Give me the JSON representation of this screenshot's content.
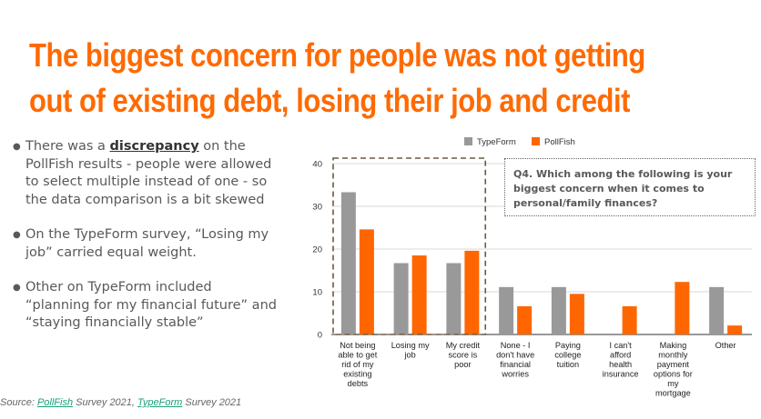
{
  "title": "The biggest concern for people was not getting out of existing debt, losing their job and credit",
  "bullets": {
    "b1_pre": "There was a ",
    "b1_bold": "discrepancy",
    "b1_post": " on the PollFish results - people were allowed to select multiple instead of one - so the data comparison is a bit skewed",
    "b2": "On the TypeForm survey, “Losing my job” carried equal weight.",
    "b3": "Other on TypeForm included “planning for my financial future” and “staying financially stable”"
  },
  "source": {
    "prefix": "Source: ",
    "pollfish_link": "PollFish",
    "mid": " Survey 2021,  ",
    "typeform_link": "TypeForm",
    "suffix": " Survey 2021"
  },
  "question_box": "Q4. Which among the following is your biggest concern when it comes to personal/family finances?",
  "colors": {
    "title": "#ff6a00",
    "typeform": "#999999",
    "pollfish": "#ff6600"
  },
  "chart_data": {
    "type": "bar",
    "categories": [
      [
        "Not being",
        "able to get",
        "rid of my",
        "existing",
        "debts"
      ],
      [
        "Losing my",
        "job"
      ],
      [
        "My credit",
        "score is",
        "poor"
      ],
      [
        "None - I",
        "don't have",
        "financial",
        "worries"
      ],
      [
        "Paying",
        "college",
        "tuition"
      ],
      [
        "I can't",
        "afford",
        "health",
        "insurance"
      ],
      [
        "Making",
        "monthly",
        "payment",
        "options for",
        "my",
        "mortgage"
      ],
      [
        "Other"
      ]
    ],
    "series": [
      {
        "name": "TypeForm",
        "values": [
          33.3,
          16.7,
          16.7,
          11.1,
          11.1,
          0,
          0,
          11.1
        ]
      },
      {
        "name": "PollFish",
        "values": [
          24.6,
          18.5,
          19.6,
          6.6,
          9.5,
          6.6,
          12.3,
          2.1
        ]
      }
    ],
    "ylim": [
      0,
      40
    ],
    "yticks": [
      "0",
      "10",
      "20",
      "30",
      "40"
    ],
    "legend": "top",
    "grid": true,
    "highlight": "dashed box around first three categories"
  }
}
